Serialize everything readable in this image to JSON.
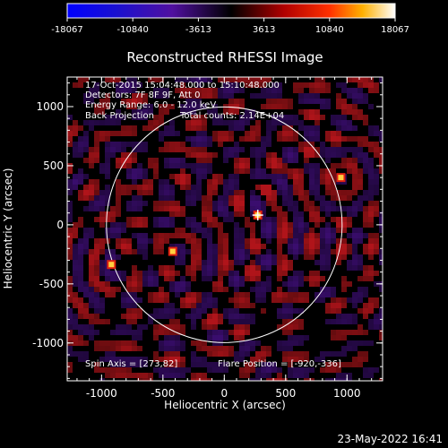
{
  "colorbar": {
    "ticks": [
      "-18067",
      "-10840",
      "-3613",
      "3613",
      "10840",
      "18067"
    ]
  },
  "title": "Reconstructed RHESSI Image",
  "axes": {
    "xlabel": "Heliocentric X (arcsec)",
    "ylabel": "Heliocentric Y (arcsec)",
    "x_ticks": [
      "-1000",
      "-500",
      "0",
      "500",
      "1000"
    ],
    "y_ticks": [
      "1000",
      "500",
      "0",
      "-500",
      "-1000"
    ],
    "xlim": [
      -1280,
      1290
    ],
    "ylim": [
      -1320,
      1250
    ]
  },
  "annotations": {
    "line1": "17-Oct-2015 15:04:48.000 to 15:10:48.000",
    "line2": "Detectors: 7F 8F 9F, Att 0",
    "line3": "Energy Range: 6.0 - 12.0 keV",
    "line4a": "Back Projection",
    "line4b": "Total counts: 2.14E+04",
    "spin_axis": "Spin Axis = [273,82]",
    "flare_position": "Flare Position = [-920,-336]"
  },
  "footer": {
    "date": "23-May-2022 16:41"
  },
  "image": {
    "solar_limb_radius_arcsec": 960,
    "colors": {
      "background": "#000000",
      "limb": "#ffffff",
      "pattern_red": "#b0141a",
      "pattern_purple": "#3a0d6e",
      "bright": "#ffd040"
    },
    "sources_arcsec": [
      [
        273,
        82
      ],
      [
        -920,
        -336
      ],
      [
        -420,
        -225
      ],
      [
        950,
        400
      ]
    ]
  }
}
